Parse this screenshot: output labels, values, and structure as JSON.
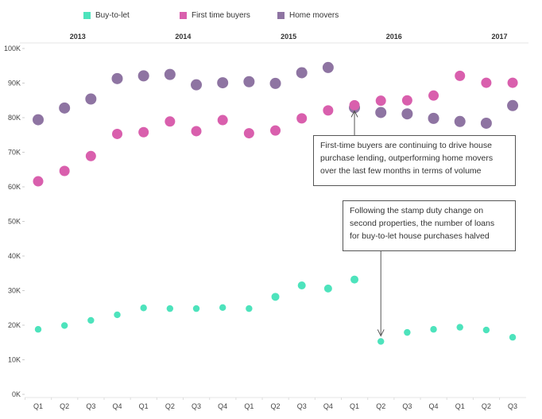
{
  "chart_data": {
    "type": "scatter",
    "title": "",
    "xlabel": "",
    "ylabel": "",
    "ylim": [
      0,
      100000
    ],
    "y_ticks": [
      "0K",
      "10K",
      "20K",
      "30K",
      "40K",
      "50K",
      "60K",
      "70K",
      "80K",
      "90K",
      "100K"
    ],
    "y_tick_values": [
      0,
      10000,
      20000,
      30000,
      40000,
      50000,
      60000,
      70000,
      80000,
      90000,
      100000
    ],
    "years": [
      "2013",
      "2014",
      "2015",
      "2016",
      "2017"
    ],
    "categories": [
      "Q1",
      "Q2",
      "Q3",
      "Q4",
      "Q1",
      "Q2",
      "Q3",
      "Q4",
      "Q1",
      "Q2",
      "Q3",
      "Q4",
      "Q1",
      "Q2",
      "Q3",
      "Q4",
      "Q1",
      "Q2",
      "Q3"
    ],
    "category_years": [
      "2013",
      "2013",
      "2013",
      "2013",
      "2014",
      "2014",
      "2014",
      "2014",
      "2015",
      "2015",
      "2015",
      "2015",
      "2016",
      "2016",
      "2016",
      "2016",
      "2017",
      "2017",
      "2017"
    ],
    "grid": false,
    "legend_position": "top",
    "series": [
      {
        "name": "Buy-to-let",
        "color": "#4de3bc",
        "values": [
          18800,
          19900,
          21400,
          23000,
          25000,
          24800,
          24800,
          25100,
          24800,
          28200,
          31500,
          30600,
          33200,
          15300,
          17900,
          18800,
          19400,
          18600,
          16500
        ]
      },
      {
        "name": "First time buyers",
        "color": "#d95fad",
        "values": [
          61600,
          64600,
          68900,
          75300,
          75800,
          78900,
          76100,
          79300,
          75500,
          76300,
          79800,
          82100,
          83600,
          84900,
          85000,
          86400,
          92100,
          90100,
          90100
        ]
      },
      {
        "name": "Home movers",
        "color": "#8e74a2",
        "values": [
          79400,
          82800,
          85400,
          91300,
          92100,
          92500,
          89500,
          90100,
          90400,
          89900,
          93000,
          94500,
          82900,
          81500,
          81100,
          79800,
          78900,
          78400,
          83500
        ]
      }
    ],
    "annotations": [
      {
        "text": "First-time buyers are continuing to drive house purchase lending, outperforming home movers over the last few months in terms of volume",
        "lines": [
          "First-time buyers are continuing to drive house",
          "purchase lending, outperforming home movers",
          "over the last few months in terms of volume"
        ],
        "points_to": {
          "series": "First time buyers",
          "category_index": 12
        }
      },
      {
        "text": "Following the stamp duty change on second properties, the number of loans for buy-to-let house purchases halved",
        "lines": [
          "Following the stamp duty change on",
          "second properties, the number of loans",
          "for buy-to-let house purchases halved"
        ],
        "points_to": {
          "series": "Buy-to-let",
          "category_index": 13
        }
      }
    ]
  },
  "legend": [
    {
      "label": "Buy-to-let",
      "color": "#4de3bc"
    },
    {
      "label": "First time buyers",
      "color": "#d95fad"
    },
    {
      "label": "Home movers",
      "color": "#8e74a2"
    }
  ]
}
